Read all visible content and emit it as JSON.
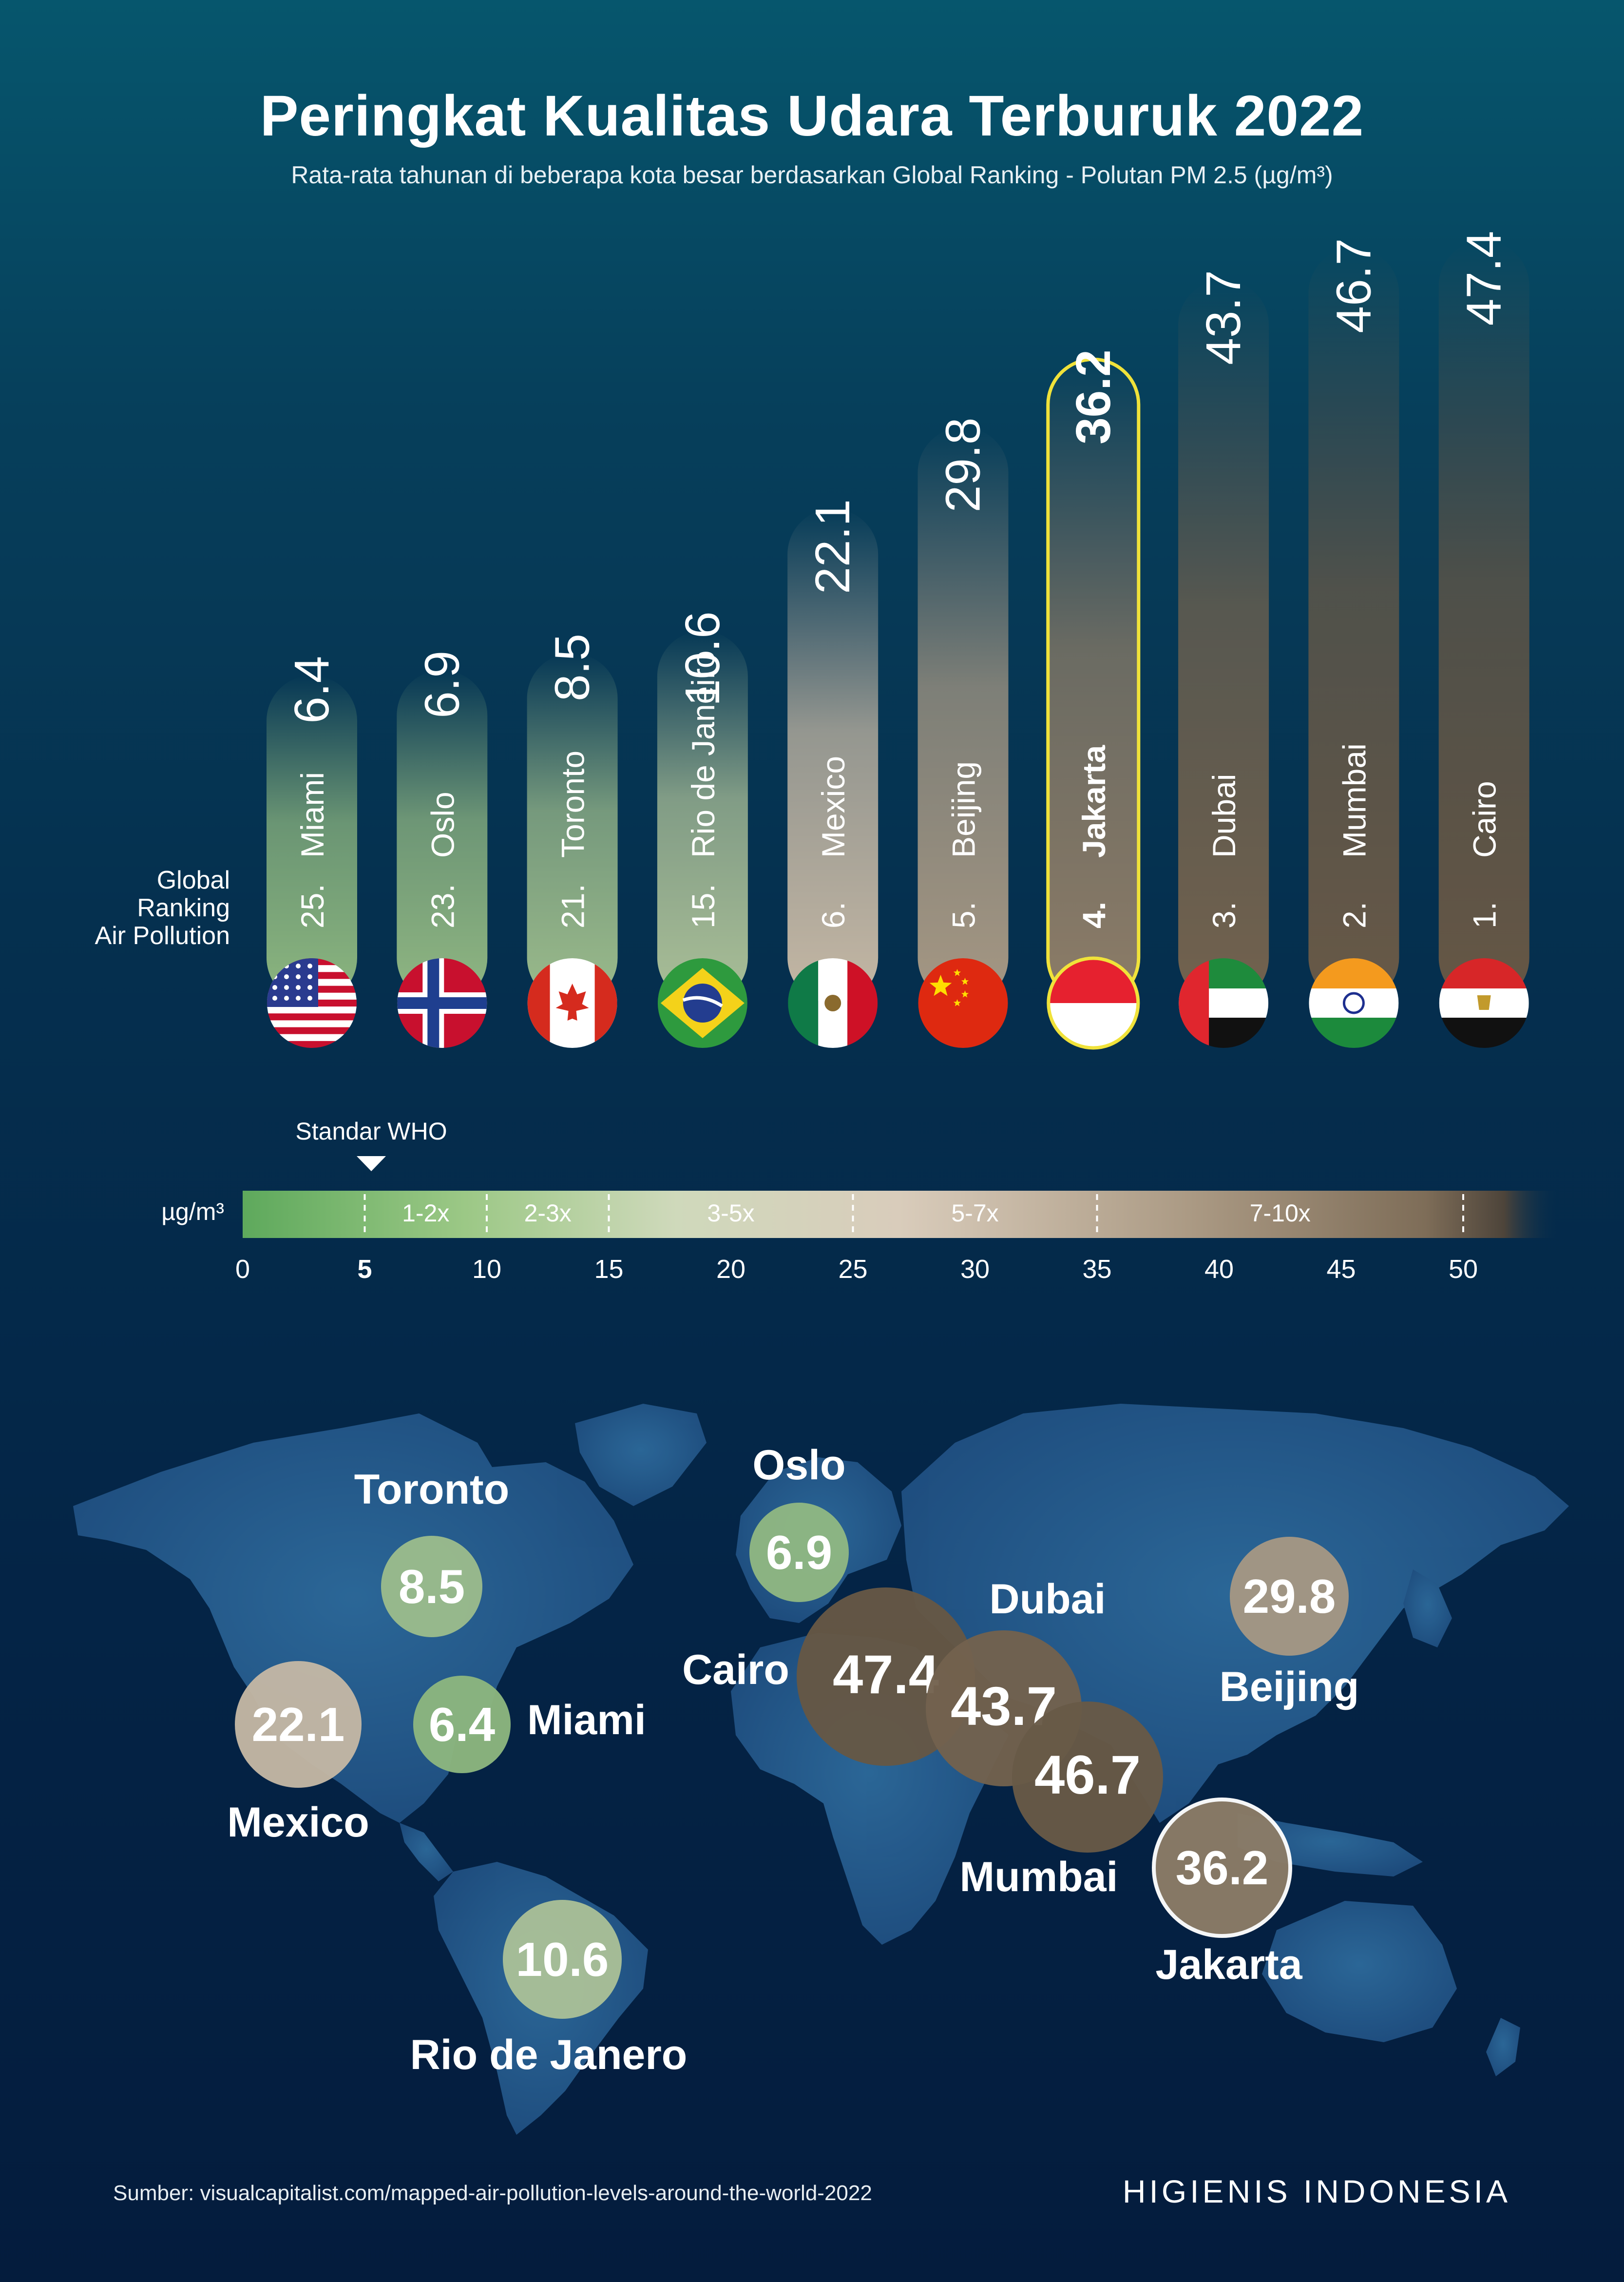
{
  "title": "Peringkat Kualitas Udara Terburuk 2022",
  "subtitle": "Rata-rata tahunan di beberapa kota besar berdasarkan Global Ranking - Polutan PM 2.5 (µg/m³)",
  "ranking_label": [
    "Global",
    "Ranking",
    "Air Pollution"
  ],
  "chart_data": {
    "type": "bar",
    "categories": [
      "Miami",
      "Oslo",
      "Toronto",
      "Rio de Janeiro",
      "Mexico",
      "Beijing",
      "Jakarta",
      "Dubai",
      "Mumbai",
      "Cairo"
    ],
    "ranks": [
      "25.",
      "23.",
      "21.",
      "15.",
      "6.",
      "5.",
      "4.",
      "3.",
      "2.",
      "1."
    ],
    "values": [
      6.4,
      6.9,
      8.5,
      10.6,
      22.1,
      29.8,
      36.2,
      43.7,
      46.7,
      47.4
    ],
    "value_labels": [
      "6.4",
      "6.9",
      "8.5",
      "10.6",
      "22.1",
      "29.8",
      "36.2",
      "43.7",
      "46.7",
      "47.4"
    ],
    "highlight": "Jakarta",
    "flags": [
      "usa-flag-icon",
      "norway-flag-icon",
      "canada-flag-icon",
      "brazil-flag-icon",
      "mexico-flag-icon",
      "china-flag-icon",
      "indonesia-flag-icon",
      "uae-flag-icon",
      "india-flag-icon",
      "egypt-flag-icon"
    ],
    "title": "Peringkat Kualitas Udara Terburuk 2022",
    "ylabel": "µg/m³",
    "ylim": [
      0,
      50
    ]
  },
  "scale": {
    "unit": "µg/m³",
    "who_label": "Standar WHO",
    "who_value": 5,
    "ticks": [
      "0",
      "5",
      "10",
      "15",
      "20",
      "25",
      "30",
      "35",
      "40",
      "45",
      "50"
    ],
    "bands": [
      {
        "from": 5,
        "to": 10,
        "label": "1-2x"
      },
      {
        "from": 10,
        "to": 15,
        "label": "2-3x"
      },
      {
        "from": 15,
        "to": 25,
        "label": "3-5x"
      },
      {
        "from": 25,
        "to": 35,
        "label": "5-7x"
      },
      {
        "from": 35,
        "to": 50,
        "label": "7-10x"
      }
    ],
    "colors": {
      "low": "#5ea95c",
      "mid": "#d8ccba",
      "high": "#7d6c57",
      "top": "#5e503f"
    }
  },
  "map": {
    "cities": [
      {
        "name": "Toronto",
        "value": "8.5"
      },
      {
        "name": "Oslo",
        "value": "6.9"
      },
      {
        "name": "Dubai",
        "value": "43.7"
      },
      {
        "name": "Cairo",
        "value": "47.4"
      },
      {
        "name": "Beijing",
        "value": "29.8"
      },
      {
        "name": "Mexico",
        "value": "22.1"
      },
      {
        "name": "Miami",
        "value": "6.4"
      },
      {
        "name": "Mumbai",
        "value": "46.7"
      },
      {
        "name": "Jakarta",
        "value": "36.2"
      },
      {
        "name": "Rio de Janero",
        "value": "10.6"
      }
    ]
  },
  "footer": {
    "source": "Sumber: visualcapitalist.com/mapped-air-pollution-levels-around-the-world-2022",
    "brand": "HIGIENIS INDONESIA"
  }
}
